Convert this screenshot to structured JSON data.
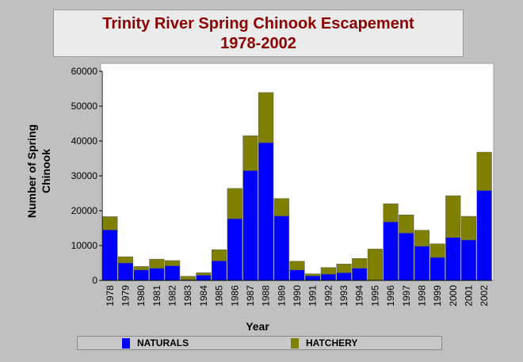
{
  "chart_data": {
    "type": "bar",
    "stacked": true,
    "title_line1": "Trinity River Spring Chinook Escapement",
    "title_line2": "1978-2002",
    "xlabel": "Year",
    "ylabel": "Number of Spring Chinook",
    "ylim": [
      0,
      60000
    ],
    "yticks": [
      "0",
      "10000",
      "20000",
      "30000",
      "40000",
      "50000",
      "60000"
    ],
    "grid": false,
    "legend_position": "bottom",
    "categories": [
      "1978",
      "1979",
      "1980",
      "1981",
      "1982",
      "1983",
      "1984",
      "1985",
      "1986",
      "1987",
      "1988",
      "1989",
      "1990",
      "1991",
      "1992",
      "1993",
      "1994",
      "1995",
      "1996",
      "1997",
      "1998",
      "1999",
      "2000",
      "2001",
      "2002"
    ],
    "series": [
      {
        "name": "NATURALS",
        "color": "#0000ff",
        "values": [
          14500,
          5000,
          3000,
          3500,
          4200,
          200,
          1500,
          5600,
          17700,
          31500,
          39500,
          18500,
          3000,
          1300,
          1800,
          2200,
          3500,
          0,
          16800,
          13600,
          9800,
          6600,
          12300,
          11600,
          25800
        ]
      },
      {
        "name": "HATCHERY",
        "color": "#808000",
        "values": [
          3800,
          1800,
          1000,
          2600,
          1500,
          1000,
          700,
          3200,
          8700,
          10000,
          14400,
          5000,
          2500,
          600,
          1900,
          2500,
          2800,
          9000,
          5200,
          5200,
          4600,
          3900,
          12000,
          6800,
          11000
        ]
      }
    ]
  }
}
